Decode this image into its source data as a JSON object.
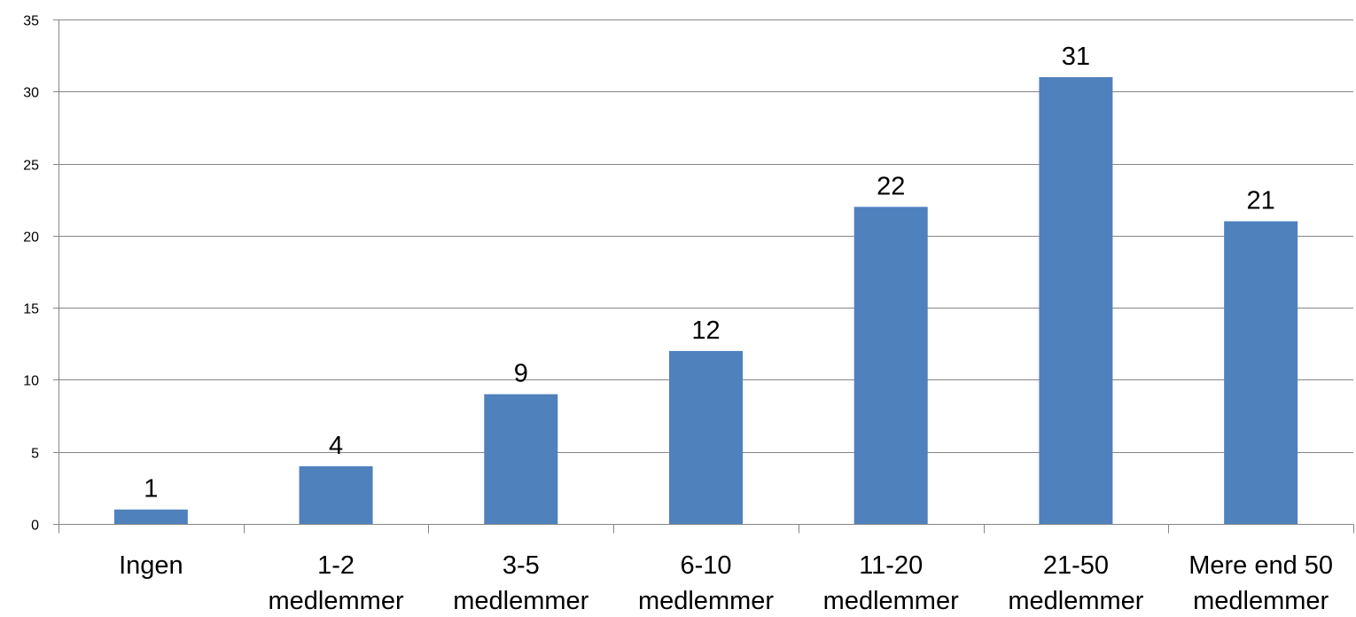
{
  "chart_data": {
    "type": "bar",
    "categories": [
      [
        "Ingen"
      ],
      [
        "1-2",
        "medlemmer"
      ],
      [
        "3-5",
        "medlemmer"
      ],
      [
        "6-10",
        "medlemmer"
      ],
      [
        "11-20",
        "medlemmer"
      ],
      [
        "21-50",
        "medlemmer"
      ],
      [
        "Mere end 50",
        "medlemmer"
      ]
    ],
    "values": [
      1,
      4,
      9,
      12,
      22,
      31,
      21
    ],
    "data_labels": [
      "1",
      "4",
      "9",
      "12",
      "22",
      "31",
      "21"
    ],
    "ylim": [
      0,
      35
    ],
    "yticks": [
      0,
      5,
      10,
      15,
      20,
      25,
      30,
      35
    ],
    "grid": true,
    "legend": "none",
    "colors": {
      "bar": "#4f81bd",
      "grid": "#868686",
      "text": "#000000"
    }
  }
}
